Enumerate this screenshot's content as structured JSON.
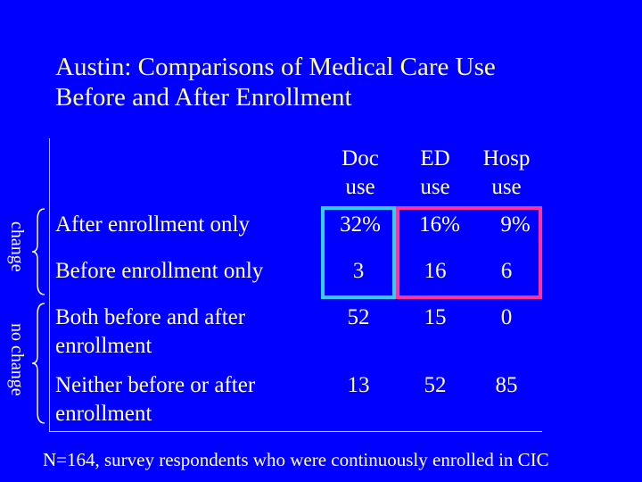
{
  "title": {
    "line1": "Austin: Comparisons of Medical Care Use",
    "line2": "Before and After Enrollment"
  },
  "columns": [
    {
      "line1": "Doc",
      "line2": "use"
    },
    {
      "line1": "ED",
      "line2": "use"
    },
    {
      "line1": "Hosp",
      "line2": "use"
    }
  ],
  "rows": [
    {
      "label": "After enrollment only",
      "values": [
        "32%",
        "16%",
        "9%"
      ]
    },
    {
      "label": "Before enrollment only",
      "values": [
        "3",
        "16",
        "6"
      ]
    },
    {
      "label_line1": "Both before and after",
      "label_line2": "enrollment",
      "values": [
        "52",
        "15",
        "0"
      ]
    },
    {
      "label_line1": "Neither before or after",
      "label_line2": "enrollment",
      "values": [
        "13",
        "52",
        "85"
      ]
    }
  ],
  "groups": {
    "change": "change",
    "no_change": "no change"
  },
  "footnote": "N=164, survey respondents who were continuously enrolled in CIC",
  "colors": {
    "background": "#0000ff",
    "title": "#ffff99",
    "doc_box": "#33ccff",
    "hosp_box": "#ff3399"
  }
}
